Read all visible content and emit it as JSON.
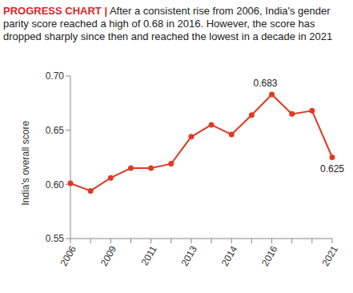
{
  "chart_data": {
    "type": "line",
    "title": "PROGRESS CHART | After a consistent rise from 2006, India's gender parity score reached a high of 0.68 in 2016. However, the score has dropped sharply since then and reached the lowest in a decade in 2021",
    "y_label": "India's overall score",
    "categories": [
      "2006",
      null,
      "2009",
      null,
      "2011",
      null,
      "2013",
      null,
      "2014",
      null,
      "2016",
      null,
      null,
      "2021"
    ],
    "values": [
      0.601,
      0.594,
      0.606,
      0.615,
      0.615,
      0.619,
      0.644,
      0.655,
      0.646,
      0.664,
      0.683,
      0.665,
      0.668,
      0.625
    ],
    "value_labels": [
      null,
      null,
      null,
      null,
      null,
      null,
      null,
      null,
      null,
      null,
      "0.683",
      null,
      null,
      "0.625"
    ],
    "color": "#e03a22",
    "marker": "circle",
    "ylim": [
      0.55,
      0.7
    ],
    "yticks": [
      0.55,
      {
        "value": 0.6,
        "label": "0.60"
      },
      0.65,
      {
        "value": 0.7,
        "label": "0.70"
      }
    ],
    "grid": false
  }
}
